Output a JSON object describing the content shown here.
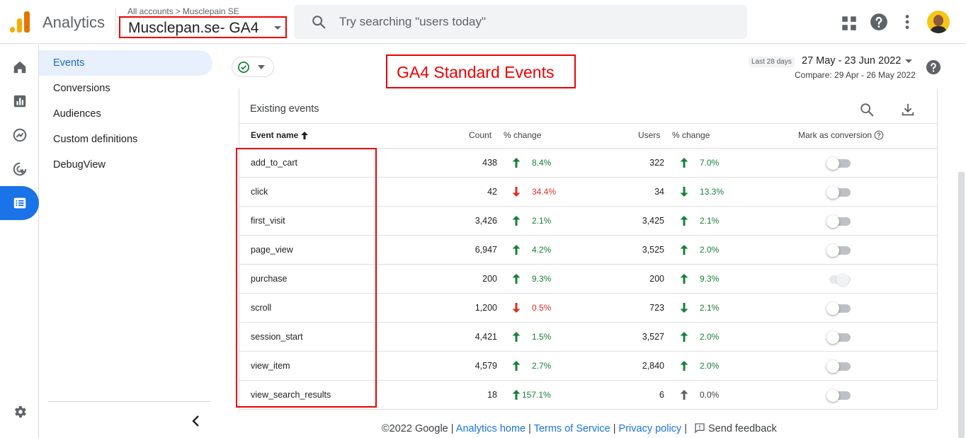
{
  "header": {
    "app_title": "Analytics",
    "breadcrumb_root": "All accounts",
    "breadcrumb_sep": ">",
    "breadcrumb_account": "Musclepain SE",
    "property_name": "Musclepan.se- GA4",
    "search_placeholder": "Try searching \"users today\""
  },
  "icons": {
    "rail": [
      "home-icon",
      "reports-icon",
      "explore-icon",
      "advertising-icon",
      "configure-icon",
      "admin-gear-icon"
    ],
    "top": [
      "apps-grid-icon",
      "help-icon",
      "more-vert-icon",
      "account-avatar"
    ]
  },
  "subnav": {
    "items": [
      "Events",
      "Conversions",
      "Audiences",
      "Custom definitions",
      "DebugView"
    ],
    "active": "Events"
  },
  "annotation": {
    "title": "GA4 Standard Events"
  },
  "date": {
    "label": "Last 28 days",
    "range": "27 May - 23 Jun 2022",
    "compare": "Compare: 29 Apr - 26 May 2022"
  },
  "table": {
    "title": "Existing events",
    "columns": {
      "event_name": "Event name",
      "count": "Count",
      "count_change": "% change",
      "users": "Users",
      "users_change": "% change",
      "conversion": "Mark as conversion"
    },
    "rows": [
      {
        "name": "add_to_cart",
        "count": "438",
        "count_change": "8.4%",
        "count_dir": "up",
        "users": "322",
        "users_change": "7.0%",
        "users_dir": "up",
        "conversion": false,
        "disabled": false
      },
      {
        "name": "click",
        "count": "42",
        "count_change": "34.4%",
        "count_dir": "down-bad",
        "users": "34",
        "users_change": "13.3%",
        "users_dir": "down-good",
        "conversion": false,
        "disabled": false
      },
      {
        "name": "first_visit",
        "count": "3,426",
        "count_change": "2.1%",
        "count_dir": "up",
        "users": "3,425",
        "users_change": "2.1%",
        "users_dir": "up",
        "conversion": false,
        "disabled": false
      },
      {
        "name": "page_view",
        "count": "6,947",
        "count_change": "4.2%",
        "count_dir": "up",
        "users": "3,525",
        "users_change": "2.0%",
        "users_dir": "up",
        "conversion": false,
        "disabled": false
      },
      {
        "name": "purchase",
        "count": "200",
        "count_change": "9.3%",
        "count_dir": "up",
        "users": "200",
        "users_change": "9.3%",
        "users_dir": "up",
        "conversion": true,
        "disabled": true
      },
      {
        "name": "scroll",
        "count": "1,200",
        "count_change": "0.5%",
        "count_dir": "down-bad",
        "users": "723",
        "users_change": "2.1%",
        "users_dir": "down-good",
        "conversion": false,
        "disabled": false
      },
      {
        "name": "session_start",
        "count": "4,421",
        "count_change": "1.5%",
        "count_dir": "up",
        "users": "3,527",
        "users_change": "2.0%",
        "users_dir": "up",
        "conversion": false,
        "disabled": false
      },
      {
        "name": "view_item",
        "count": "4,579",
        "count_change": "2.7%",
        "count_dir": "up",
        "users": "2,840",
        "users_change": "2.0%",
        "users_dir": "up",
        "conversion": false,
        "disabled": false
      },
      {
        "name": "view_search_results",
        "count": "18",
        "count_change": "157.1%",
        "count_dir": "up",
        "users": "6",
        "users_change": "0.0%",
        "users_dir": "neutral",
        "conversion": false,
        "disabled": false
      }
    ]
  },
  "footer": {
    "copyright": "©2022 Google",
    "sep": "|",
    "links": [
      "Analytics home",
      "Terms of Service",
      "Privacy policy"
    ],
    "feedback": "Send feedback"
  },
  "colors": {
    "up": "#188038",
    "down_bad": "#d93025",
    "neutral": "#5f6368",
    "accent": "#1a73e8",
    "annotation": "#ee0000"
  }
}
